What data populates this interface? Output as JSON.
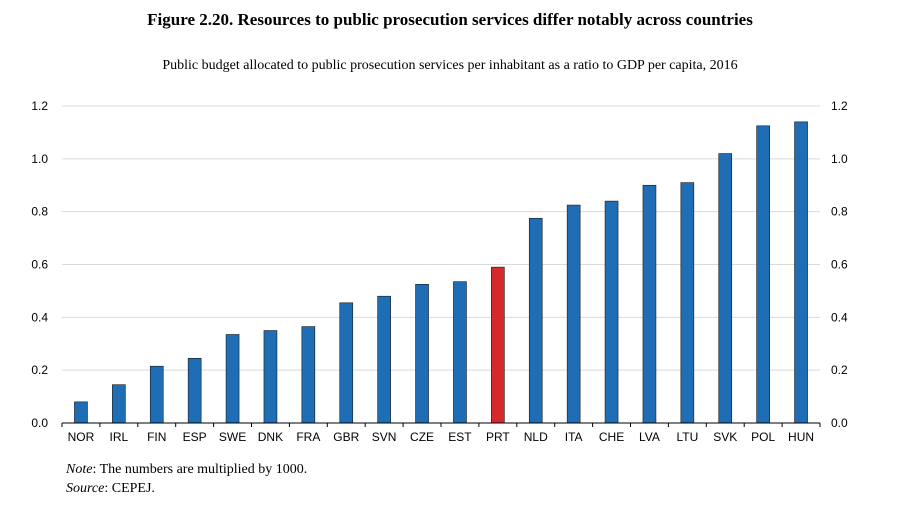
{
  "figure": {
    "title": "Figure 2.20. Resources to public prosecution services differ notably across countries",
    "subtitle": "Public budget allocated to public prosecution services per inhabitant as a ratio to GDP per capita, 2016"
  },
  "chart_data": {
    "type": "bar",
    "categories": [
      "NOR",
      "IRL",
      "FIN",
      "ESP",
      "SWE",
      "DNK",
      "FRA",
      "GBR",
      "SVN",
      "CZE",
      "EST",
      "PRT",
      "NLD",
      "ITA",
      "CHE",
      "LVA",
      "LTU",
      "SVK",
      "POL",
      "HUN"
    ],
    "values": [
      0.08,
      0.145,
      0.215,
      0.245,
      0.335,
      0.35,
      0.365,
      0.455,
      0.48,
      0.525,
      0.535,
      0.59,
      0.775,
      0.825,
      0.84,
      0.9,
      0.91,
      1.02,
      1.125,
      1.14
    ],
    "highlight": "PRT",
    "ylim": [
      0,
      1.2
    ],
    "yticks": [
      "0.0",
      "0.2",
      "0.4",
      "0.6",
      "0.8",
      "1.0",
      "1.2"
    ],
    "grid": true,
    "axis_labels_both_sides": true,
    "colors": {
      "bar": "#1f6db5",
      "highlight": "#d7282b",
      "grid": "#d9d9d9",
      "axis": "#000000"
    }
  },
  "notes": {
    "note_label": "Note",
    "note_text": ": The numbers are multiplied by 1000.",
    "source_label": "Source",
    "source_text": ": CEPEJ."
  }
}
